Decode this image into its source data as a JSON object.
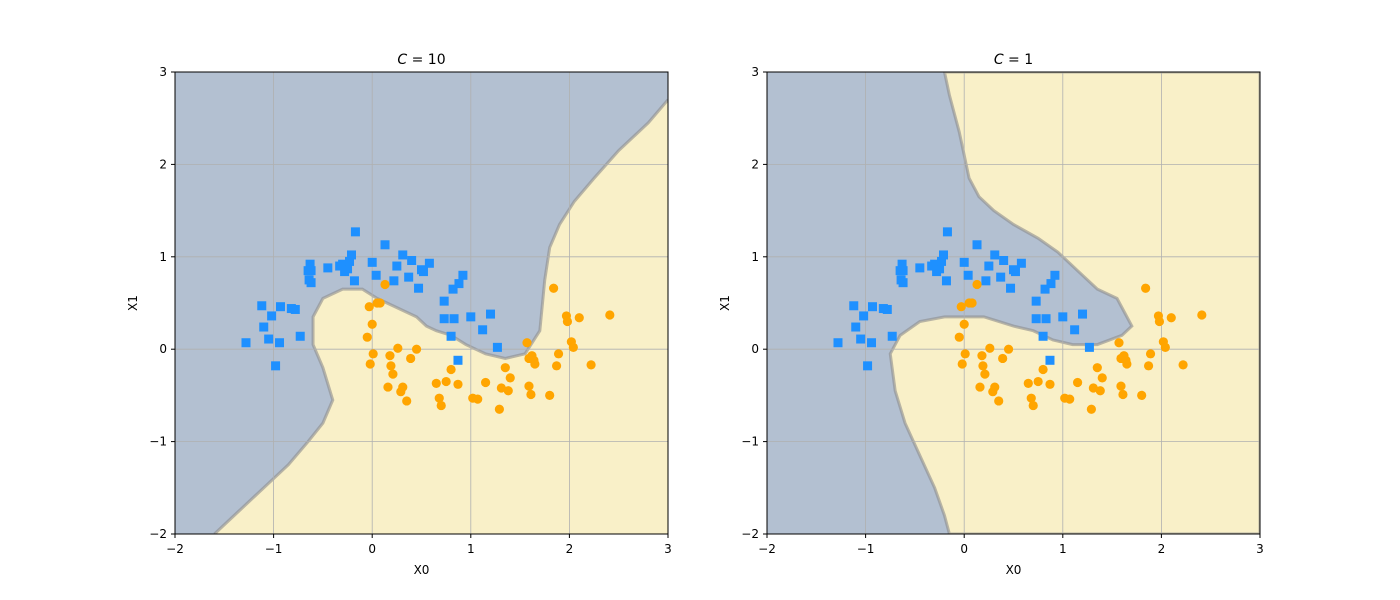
{
  "chart_data": [
    {
      "type": "scatter",
      "title": "C = 10",
      "title_var": "C",
      "title_rest": " = 10",
      "xlabel": "X0",
      "ylabel": "X1",
      "xlim": [
        -2,
        3
      ],
      "ylim": [
        -2,
        3
      ],
      "xticks": [
        -2,
        -1,
        0,
        1,
        2,
        3
      ],
      "yticks": [
        -2,
        -1,
        0,
        1,
        2,
        3
      ],
      "xtick_labels": [
        "−2",
        "−1",
        "0",
        "1",
        "2",
        "3"
      ],
      "ytick_labels": [
        "−2",
        "−1",
        "0",
        "1",
        "2",
        "3"
      ],
      "grid": true,
      "region_colors": {
        "class0": "#b3c0d1",
        "class1": "#f9f0c8"
      },
      "boundary": [
        [
          -1.6,
          -2
        ],
        [
          -1.35,
          -1.75
        ],
        [
          -1.1,
          -1.5
        ],
        [
          -0.85,
          -1.25
        ],
        [
          -0.65,
          -1.0
        ],
        [
          -0.5,
          -0.8
        ],
        [
          -0.4,
          -0.55
        ],
        [
          -0.5,
          -0.2
        ],
        [
          -0.6,
          0.05
        ],
        [
          -0.6,
          0.35
        ],
        [
          -0.5,
          0.55
        ],
        [
          -0.3,
          0.65
        ],
        [
          -0.1,
          0.65
        ],
        [
          0.05,
          0.55
        ],
        [
          0.25,
          0.45
        ],
        [
          0.45,
          0.35
        ],
        [
          0.55,
          0.25
        ],
        [
          0.65,
          0.2
        ],
        [
          0.8,
          0.15
        ],
        [
          0.95,
          0.05
        ],
        [
          1.15,
          -0.05
        ],
        [
          1.35,
          -0.1
        ],
        [
          1.55,
          -0.05
        ],
        [
          1.7,
          0.2
        ],
        [
          1.75,
          0.75
        ],
        [
          1.8,
          1.1
        ],
        [
          1.9,
          1.35
        ],
        [
          2.05,
          1.6
        ],
        [
          2.25,
          1.85
        ],
        [
          2.5,
          2.15
        ],
        [
          2.8,
          2.45
        ],
        [
          3,
          2.7
        ]
      ],
      "series": [
        {
          "marker": "square",
          "color": "#1e90ff",
          "points": [
            [
              -1.28,
              0.07
            ],
            [
              -1.12,
              0.47
            ],
            [
              -1.1,
              0.24
            ],
            [
              -1.05,
              0.11
            ],
            [
              -1.02,
              0.36
            ],
            [
              -0.98,
              -0.18
            ],
            [
              -0.94,
              0.07
            ],
            [
              -0.93,
              0.46
            ],
            [
              -0.82,
              0.44
            ],
            [
              -0.78,
              0.43
            ],
            [
              -0.73,
              0.14
            ],
            [
              -0.65,
              0.85
            ],
            [
              -0.64,
              0.75
            ],
            [
              -0.63,
              0.92
            ],
            [
              -0.62,
              0.85
            ],
            [
              -0.62,
              0.72
            ],
            [
              -0.45,
              0.88
            ],
            [
              -0.33,
              0.9
            ],
            [
              -0.3,
              0.92
            ],
            [
              -0.28,
              0.84
            ],
            [
              -0.25,
              0.87
            ],
            [
              -0.23,
              0.95
            ],
            [
              -0.21,
              1.02
            ],
            [
              -0.18,
              0.74
            ],
            [
              -0.17,
              1.27
            ],
            [
              0.0,
              0.94
            ],
            [
              0.04,
              0.8
            ],
            [
              0.13,
              1.13
            ],
            [
              0.22,
              0.74
            ],
            [
              0.25,
              0.9
            ],
            [
              0.31,
              1.02
            ],
            [
              0.37,
              0.78
            ],
            [
              0.4,
              0.96
            ],
            [
              0.47,
              0.66
            ],
            [
              0.5,
              0.86
            ],
            [
              0.52,
              0.84
            ],
            [
              0.58,
              0.93
            ],
            [
              0.73,
              0.52
            ],
            [
              0.73,
              0.33
            ],
            [
              0.8,
              0.14
            ],
            [
              0.82,
              0.65
            ],
            [
              0.83,
              0.33
            ],
            [
              0.88,
              0.71
            ],
            [
              0.87,
              -0.12
            ],
            [
              0.92,
              0.8
            ],
            [
              1.0,
              0.35
            ],
            [
              1.12,
              0.21
            ],
            [
              1.2,
              0.38
            ],
            [
              1.27,
              0.02
            ]
          ]
        },
        {
          "marker": "circle",
          "color": "#ffa500",
          "points": [
            [
              -0.05,
              0.13
            ],
            [
              -0.03,
              0.46
            ],
            [
              -0.02,
              -0.16
            ],
            [
              0.0,
              0.27
            ],
            [
              0.01,
              -0.05
            ],
            [
              0.05,
              0.5
            ],
            [
              0.08,
              0.5
            ],
            [
              0.13,
              0.7
            ],
            [
              0.16,
              -0.41
            ],
            [
              0.18,
              -0.07
            ],
            [
              0.19,
              -0.18
            ],
            [
              0.21,
              -0.27
            ],
            [
              0.26,
              0.01
            ],
            [
              0.29,
              -0.46
            ],
            [
              0.31,
              -0.41
            ],
            [
              0.35,
              -0.56
            ],
            [
              0.39,
              -0.1
            ],
            [
              0.45,
              0.0
            ],
            [
              0.65,
              -0.37
            ],
            [
              0.68,
              -0.53
            ],
            [
              0.7,
              -0.61
            ],
            [
              0.75,
              -0.35
            ],
            [
              0.8,
              -0.22
            ],
            [
              0.87,
              -0.38
            ],
            [
              1.02,
              -0.53
            ],
            [
              1.07,
              -0.54
            ],
            [
              1.15,
              -0.36
            ],
            [
              1.29,
              -0.65
            ],
            [
              1.31,
              -0.42
            ],
            [
              1.35,
              -0.2
            ],
            [
              1.38,
              -0.45
            ],
            [
              1.4,
              -0.31
            ],
            [
              1.57,
              0.07
            ],
            [
              1.59,
              -0.1
            ],
            [
              1.59,
              -0.4
            ],
            [
              1.61,
              -0.49
            ],
            [
              1.62,
              -0.07
            ],
            [
              1.64,
              -0.12
            ],
            [
              1.65,
              -0.16
            ],
            [
              1.8,
              -0.5
            ],
            [
              1.84,
              0.66
            ],
            [
              1.87,
              -0.18
            ],
            [
              1.89,
              -0.05
            ],
            [
              1.97,
              0.36
            ],
            [
              1.98,
              0.3
            ],
            [
              2.02,
              0.08
            ],
            [
              2.04,
              0.02
            ],
            [
              2.1,
              0.34
            ],
            [
              2.22,
              -0.17
            ],
            [
              2.41,
              0.37
            ]
          ]
        }
      ]
    },
    {
      "type": "scatter",
      "title": "C = 1",
      "title_var": "C",
      "title_rest": " = 1",
      "xlabel": "X0",
      "ylabel": "X1",
      "xlim": [
        -2,
        3
      ],
      "ylim": [
        -2,
        3
      ],
      "xticks": [
        -2,
        -1,
        0,
        1,
        2,
        3
      ],
      "yticks": [
        -2,
        -1,
        0,
        1,
        2,
        3
      ],
      "xtick_labels": [
        "−2",
        "−1",
        "0",
        "1",
        "2",
        "3"
      ],
      "ytick_labels": [
        "−2",
        "−1",
        "0",
        "1",
        "2",
        "3"
      ],
      "grid": true,
      "region_colors": {
        "class0": "#b3c0d1",
        "class1": "#f9f0c8"
      },
      "region_polygon": [
        [
          -0.2,
          3
        ],
        [
          -0.15,
          2.75
        ],
        [
          -0.1,
          2.55
        ],
        [
          -0.05,
          2.35
        ],
        [
          0.0,
          2.1
        ],
        [
          0.05,
          1.85
        ],
        [
          0.15,
          1.65
        ],
        [
          0.3,
          1.5
        ],
        [
          0.5,
          1.35
        ],
        [
          0.75,
          1.2
        ],
        [
          0.95,
          1.05
        ],
        [
          1.15,
          0.85
        ],
        [
          1.35,
          0.65
        ],
        [
          1.55,
          0.55
        ],
        [
          1.6,
          0.45
        ],
        [
          1.7,
          0.25
        ],
        [
          1.6,
          0.15
        ],
        [
          1.35,
          0.05
        ],
        [
          1.1,
          0.05
        ],
        [
          0.9,
          0.1
        ],
        [
          0.7,
          0.2
        ],
        [
          0.5,
          0.25
        ],
        [
          0.35,
          0.3
        ],
        [
          0.2,
          0.35
        ],
        [
          0.0,
          0.35
        ],
        [
          -0.2,
          0.35
        ],
        [
          -0.45,
          0.3
        ],
        [
          -0.65,
          0.15
        ],
        [
          -0.75,
          -0.05
        ],
        [
          -0.7,
          -0.45
        ],
        [
          -0.6,
          -0.8
        ],
        [
          -0.45,
          -1.15
        ],
        [
          -0.3,
          -1.5
        ],
        [
          -0.2,
          -1.8
        ],
        [
          -0.15,
          -2
        ],
        [
          3,
          -2
        ],
        [
          3,
          3
        ]
      ],
      "series": [
        {
          "marker": "square",
          "color": "#1e90ff",
          "points": [
            [
              -1.28,
              0.07
            ],
            [
              -1.12,
              0.47
            ],
            [
              -1.1,
              0.24
            ],
            [
              -1.05,
              0.11
            ],
            [
              -1.02,
              0.36
            ],
            [
              -0.98,
              -0.18
            ],
            [
              -0.94,
              0.07
            ],
            [
              -0.93,
              0.46
            ],
            [
              -0.82,
              0.44
            ],
            [
              -0.78,
              0.43
            ],
            [
              -0.73,
              0.14
            ],
            [
              -0.65,
              0.85
            ],
            [
              -0.64,
              0.75
            ],
            [
              -0.63,
              0.92
            ],
            [
              -0.62,
              0.85
            ],
            [
              -0.62,
              0.72
            ],
            [
              -0.45,
              0.88
            ],
            [
              -0.33,
              0.9
            ],
            [
              -0.3,
              0.92
            ],
            [
              -0.28,
              0.84
            ],
            [
              -0.25,
              0.87
            ],
            [
              -0.23,
              0.95
            ],
            [
              -0.21,
              1.02
            ],
            [
              -0.18,
              0.74
            ],
            [
              -0.17,
              1.27
            ],
            [
              0.0,
              0.94
            ],
            [
              0.04,
              0.8
            ],
            [
              0.13,
              1.13
            ],
            [
              0.22,
              0.74
            ],
            [
              0.25,
              0.9
            ],
            [
              0.31,
              1.02
            ],
            [
              0.37,
              0.78
            ],
            [
              0.4,
              0.96
            ],
            [
              0.47,
              0.66
            ],
            [
              0.5,
              0.86
            ],
            [
              0.52,
              0.84
            ],
            [
              0.58,
              0.93
            ],
            [
              0.73,
              0.52
            ],
            [
              0.73,
              0.33
            ],
            [
              0.8,
              0.14
            ],
            [
              0.82,
              0.65
            ],
            [
              0.83,
              0.33
            ],
            [
              0.88,
              0.71
            ],
            [
              0.87,
              -0.12
            ],
            [
              0.92,
              0.8
            ],
            [
              1.0,
              0.35
            ],
            [
              1.12,
              0.21
            ],
            [
              1.2,
              0.38
            ],
            [
              1.27,
              0.02
            ]
          ]
        },
        {
          "marker": "circle",
          "color": "#ffa500",
          "points": [
            [
              -0.05,
              0.13
            ],
            [
              -0.03,
              0.46
            ],
            [
              -0.02,
              -0.16
            ],
            [
              0.0,
              0.27
            ],
            [
              0.01,
              -0.05
            ],
            [
              0.05,
              0.5
            ],
            [
              0.08,
              0.5
            ],
            [
              0.13,
              0.7
            ],
            [
              0.16,
              -0.41
            ],
            [
              0.18,
              -0.07
            ],
            [
              0.19,
              -0.18
            ],
            [
              0.21,
              -0.27
            ],
            [
              0.26,
              0.01
            ],
            [
              0.29,
              -0.46
            ],
            [
              0.31,
              -0.41
            ],
            [
              0.35,
              -0.56
            ],
            [
              0.39,
              -0.1
            ],
            [
              0.45,
              0.0
            ],
            [
              0.65,
              -0.37
            ],
            [
              0.68,
              -0.53
            ],
            [
              0.7,
              -0.61
            ],
            [
              0.75,
              -0.35
            ],
            [
              0.8,
              -0.22
            ],
            [
              0.87,
              -0.38
            ],
            [
              1.02,
              -0.53
            ],
            [
              1.07,
              -0.54
            ],
            [
              1.15,
              -0.36
            ],
            [
              1.29,
              -0.65
            ],
            [
              1.31,
              -0.42
            ],
            [
              1.35,
              -0.2
            ],
            [
              1.38,
              -0.45
            ],
            [
              1.4,
              -0.31
            ],
            [
              1.57,
              0.07
            ],
            [
              1.59,
              -0.1
            ],
            [
              1.59,
              -0.4
            ],
            [
              1.61,
              -0.49
            ],
            [
              1.62,
              -0.07
            ],
            [
              1.64,
              -0.12
            ],
            [
              1.65,
              -0.16
            ],
            [
              1.8,
              -0.5
            ],
            [
              1.84,
              0.66
            ],
            [
              1.87,
              -0.18
            ],
            [
              1.89,
              -0.05
            ],
            [
              1.97,
              0.36
            ],
            [
              1.98,
              0.3
            ],
            [
              2.02,
              0.08
            ],
            [
              2.04,
              0.02
            ],
            [
              2.1,
              0.34
            ],
            [
              2.22,
              -0.17
            ],
            [
              2.41,
              0.37
            ]
          ]
        }
      ]
    }
  ]
}
